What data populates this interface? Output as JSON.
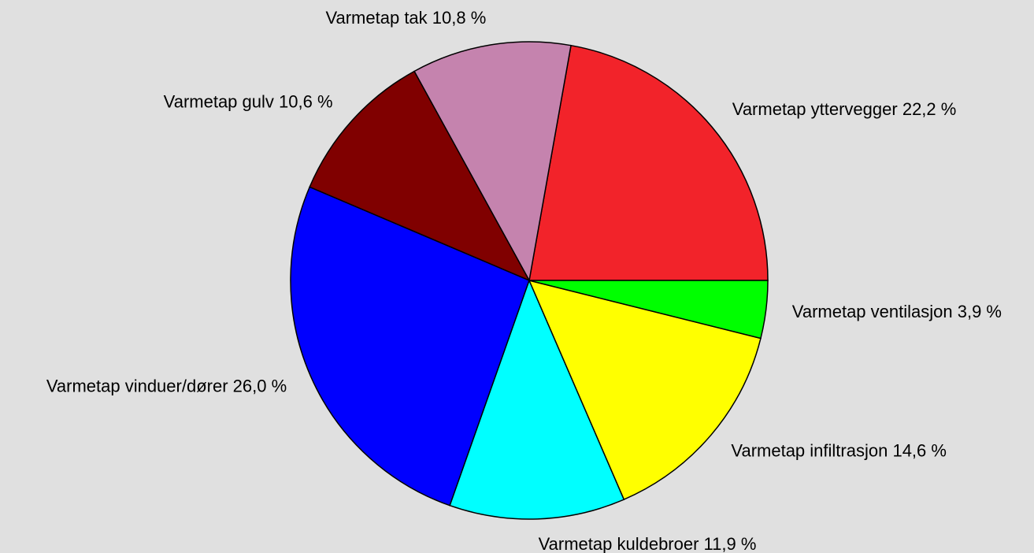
{
  "chart_data": {
    "type": "pie",
    "categories": [
      "Varmetap yttervegger",
      "Varmetap tak",
      "Varmetap gulv",
      "Varmetap vinduer/dører",
      "Varmetap kuldebroer",
      "Varmetap infiltrasjon",
      "Varmetap ventilasjon"
    ],
    "values": [
      22.2,
      10.8,
      10.6,
      26.0,
      11.9,
      14.6,
      3.9
    ],
    "value_labels": [
      "22,2 %",
      "10,8 %",
      "10,6 %",
      "26,0 %",
      "11,9 %",
      "14,6 %",
      "3,9 %"
    ],
    "colors": [
      "#f2232a",
      "#c583ae",
      "#800000",
      "#0000ff",
      "#00ffff",
      "#ffff00",
      "#00ff00"
    ]
  }
}
